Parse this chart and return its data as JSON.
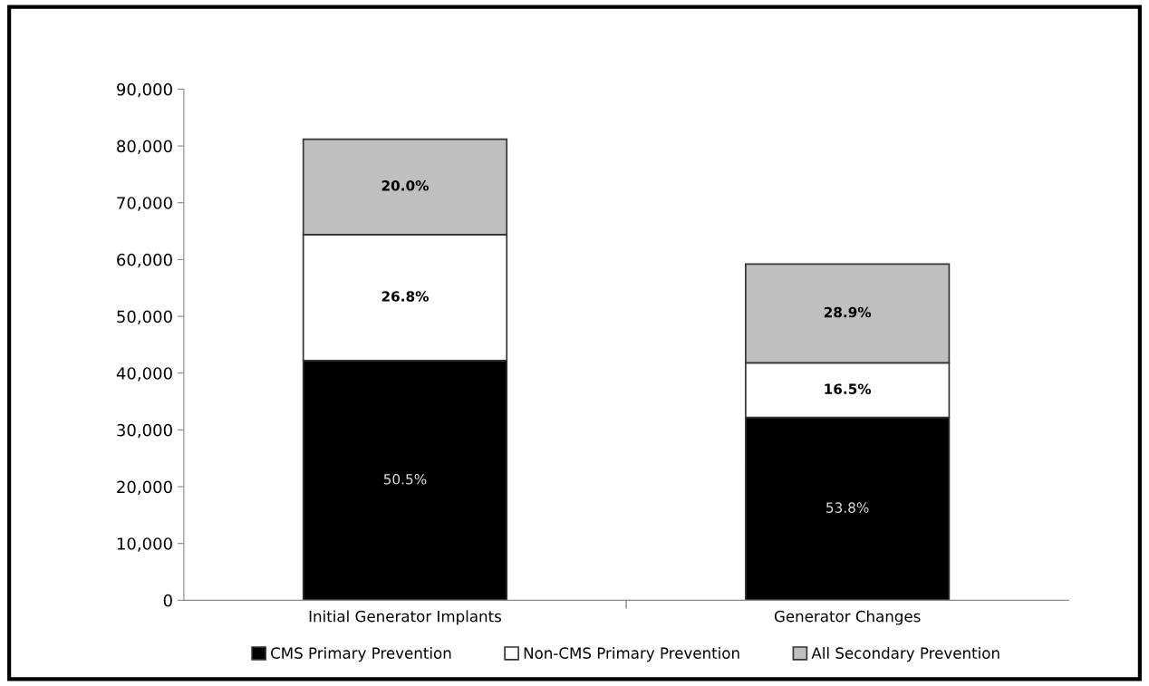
{
  "chart_data": {
    "type": "bar",
    "stacked": true,
    "categories": [
      "Initial Generator Implants",
      "Generator Changes"
    ],
    "series": [
      {
        "name": "CMS Primary Prevention",
        "color": "#000000",
        "values": [
          42200,
          32200
        ]
      },
      {
        "name": "Non-CMS Primary Prevention",
        "color": "#ffffff",
        "values": [
          22200,
          9600
        ]
      },
      {
        "name": "All Secondary Prevention",
        "color": "#bfbfbf",
        "values": [
          16800,
          17400
        ]
      }
    ],
    "annotations": [
      "50.5%",
      "53.8%",
      "26.8%",
      "16.5%",
      "20.0%",
      "28.9%"
    ],
    "ylim": [
      0,
      90000
    ],
    "yticks": [
      {
        "value": 0,
        "label": "0"
      },
      {
        "value": 10000,
        "label": "10,000"
      },
      {
        "value": 20000,
        "label": "20,000"
      },
      {
        "value": 30000,
        "label": "30,000"
      },
      {
        "value": 40000,
        "label": "40,000"
      },
      {
        "value": 50000,
        "label": "50,000"
      },
      {
        "value": 60000,
        "label": "60,000"
      },
      {
        "value": 70000,
        "label": "70,000"
      },
      {
        "value": 80000,
        "label": "80,000"
      },
      {
        "value": 90000,
        "label": "90,000"
      }
    ],
    "grid": false,
    "legend": "bottom"
  }
}
